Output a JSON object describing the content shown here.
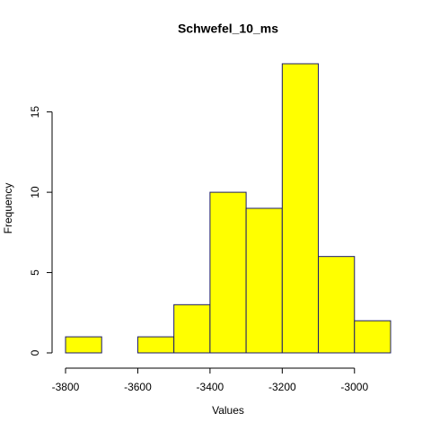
{
  "chart_data": {
    "type": "histogram",
    "title": "Schwefel_10_ms",
    "x_label": "Values",
    "y_label": "Frequency",
    "bins": [
      -3800,
      -3700,
      -3600,
      -3500,
      -3400,
      -3300,
      -3200,
      -3100,
      -3000,
      -2900
    ],
    "values": [
      1,
      0,
      1,
      3,
      10,
      9,
      18,
      6,
      2
    ],
    "color": "#ffff00",
    "border_color": "#1c1c6b",
    "xlim": [
      -3800,
      -2900
    ],
    "xticks": [
      -3800,
      -3600,
      -3400,
      -3200,
      -3000
    ],
    "ylim": [
      0,
      18
    ],
    "yticks": [
      0,
      5,
      10,
      15
    ]
  }
}
